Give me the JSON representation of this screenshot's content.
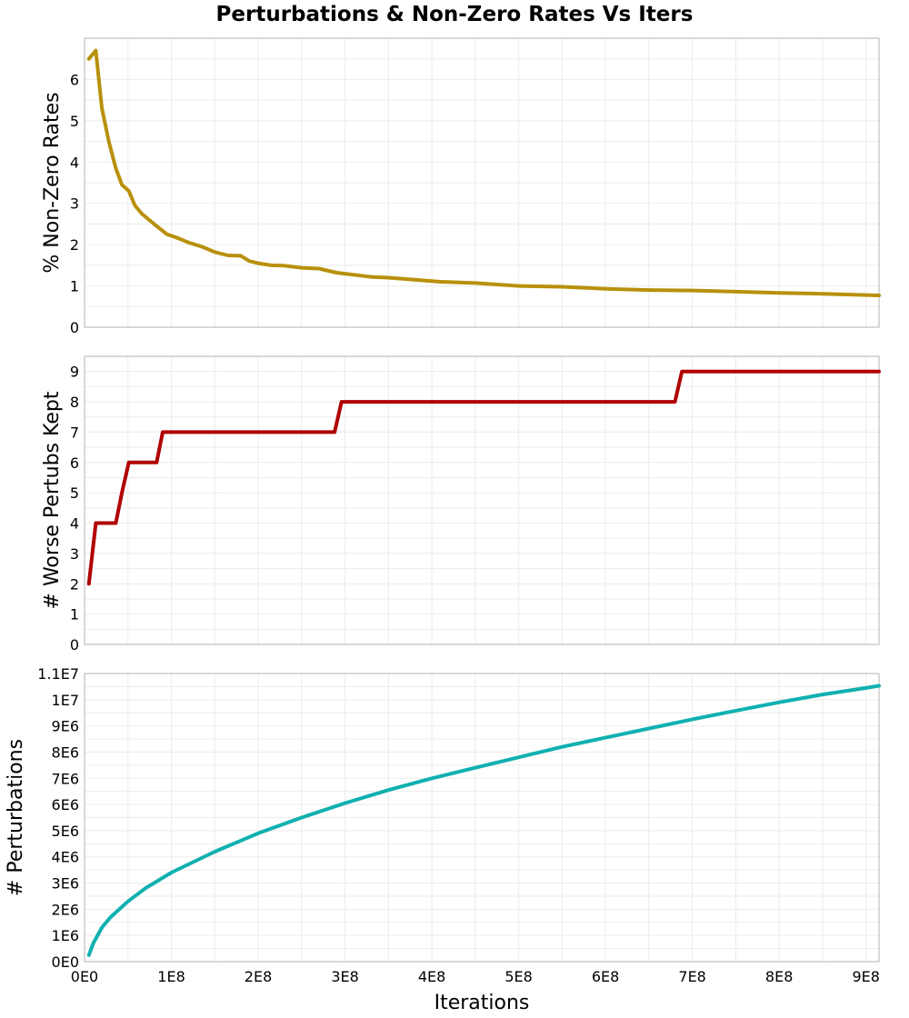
{
  "chart_data": {
    "type": "line",
    "title": "Perturbations & Non-Zero Rates Vs Iters",
    "xlabel": "Iterations",
    "xlim": [
      0,
      915000000
    ],
    "x_ticks": [
      0,
      100000000,
      200000000,
      300000000,
      400000000,
      500000000,
      600000000,
      700000000,
      800000000,
      900000000
    ],
    "x_tick_labels": [
      "0E0",
      "1E8",
      "2E8",
      "3E8",
      "4E8",
      "5E8",
      "6E8",
      "7E8",
      "8E8",
      "9E8"
    ],
    "panels": [
      {
        "ylabel": "% Non-Zero Rates",
        "ylim": [
          0,
          7
        ],
        "y_ticks": [
          0,
          1,
          2,
          3,
          4,
          5,
          6
        ],
        "y_tick_labels": [
          "0",
          "1",
          "2",
          "3",
          "4",
          "5",
          "6"
        ],
        "color": "#b8900b",
        "x": [
          5000000,
          13000000,
          20000000,
          28000000,
          36000000,
          43000000,
          51000000,
          58000000,
          66000000,
          80000000,
          95000000,
          105000000,
          120000000,
          135000000,
          150000000,
          165000000,
          180000000,
          190000000,
          200000000,
          215000000,
          230000000,
          250000000,
          270000000,
          290000000,
          310000000,
          330000000,
          350000000,
          380000000,
          410000000,
          450000000,
          500000000,
          550000000,
          600000000,
          650000000,
          700000000,
          750000000,
          800000000,
          850000000,
          900000000,
          915000000
        ],
        "y": [
          6.5,
          6.7,
          5.3,
          4.5,
          3.85,
          3.45,
          3.3,
          2.95,
          2.75,
          2.5,
          2.25,
          2.18,
          2.05,
          1.95,
          1.82,
          1.74,
          1.73,
          1.6,
          1.55,
          1.5,
          1.49,
          1.44,
          1.42,
          1.32,
          1.27,
          1.22,
          1.2,
          1.15,
          1.1,
          1.07,
          1.0,
          0.98,
          0.93,
          0.9,
          0.89,
          0.86,
          0.83,
          0.81,
          0.78,
          0.77
        ]
      },
      {
        "ylabel": "# Worse Pertubs Kept",
        "ylim": [
          0,
          9.5
        ],
        "y_ticks": [
          0,
          1,
          2,
          3,
          4,
          5,
          6,
          7,
          8,
          9
        ],
        "y_tick_labels": [
          "0",
          "1",
          "2",
          "3",
          "4",
          "5",
          "6",
          "7",
          "8",
          "9"
        ],
        "color": "#b00000",
        "x": [
          5000000,
          13000000,
          36000000,
          43000000,
          51000000,
          83000000,
          90000000,
          288000000,
          296000000,
          680000000,
          688000000,
          915000000
        ],
        "y": [
          2,
          4,
          4,
          5,
          6,
          6,
          7,
          7,
          8,
          8,
          9,
          9
        ]
      },
      {
        "ylabel": "# Perturbations",
        "ylim": [
          0,
          11000000
        ],
        "y_ticks": [
          0,
          1000000,
          2000000,
          3000000,
          4000000,
          5000000,
          6000000,
          7000000,
          8000000,
          9000000,
          10000000,
          11000000
        ],
        "y_tick_labels": [
          "0E0",
          "1E6",
          "2E6",
          "3E6",
          "4E6",
          "5E6",
          "6E6",
          "7E6",
          "8E6",
          "9E6",
          "1E7",
          "1.1E7"
        ],
        "color": "#10b0b0",
        "x": [
          5000000,
          10000000,
          20000000,
          30000000,
          40000000,
          50000000,
          70000000,
          100000000,
          150000000,
          200000000,
          250000000,
          300000000,
          350000000,
          400000000,
          450000000,
          500000000,
          550000000,
          600000000,
          650000000,
          700000000,
          750000000,
          800000000,
          850000000,
          900000000,
          915000000
        ],
        "y": [
          250000,
          700000,
          1300000,
          1700000,
          2000000,
          2300000,
          2800000,
          3400000,
          4200000,
          4900000,
          5500000,
          6050000,
          6550000,
          7000000,
          7400000,
          7800000,
          8200000,
          8550000,
          8900000,
          9250000,
          9580000,
          9900000,
          10200000,
          10450000,
          10530000
        ]
      }
    ]
  }
}
